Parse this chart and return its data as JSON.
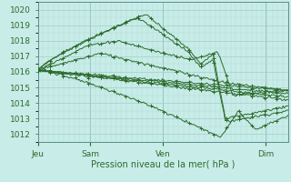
{
  "xlabel": "Pression niveau de la mer( hPa )",
  "bg_color": "#c8ece8",
  "grid_major_color": "#a8d4d0",
  "grid_minor_color": "#b8e0dc",
  "line_color": "#2d6b2d",
  "ylim": [
    1011.5,
    1020.5
  ],
  "yticks": [
    1012,
    1013,
    1014,
    1015,
    1016,
    1017,
    1018,
    1019,
    1020
  ],
  "xtick_labels": [
    "Jeu",
    "Sam",
    "Ven",
    "Dim"
  ],
  "xtick_positions": [
    0.0,
    0.21,
    0.5,
    0.91
  ],
  "n_points": 200
}
